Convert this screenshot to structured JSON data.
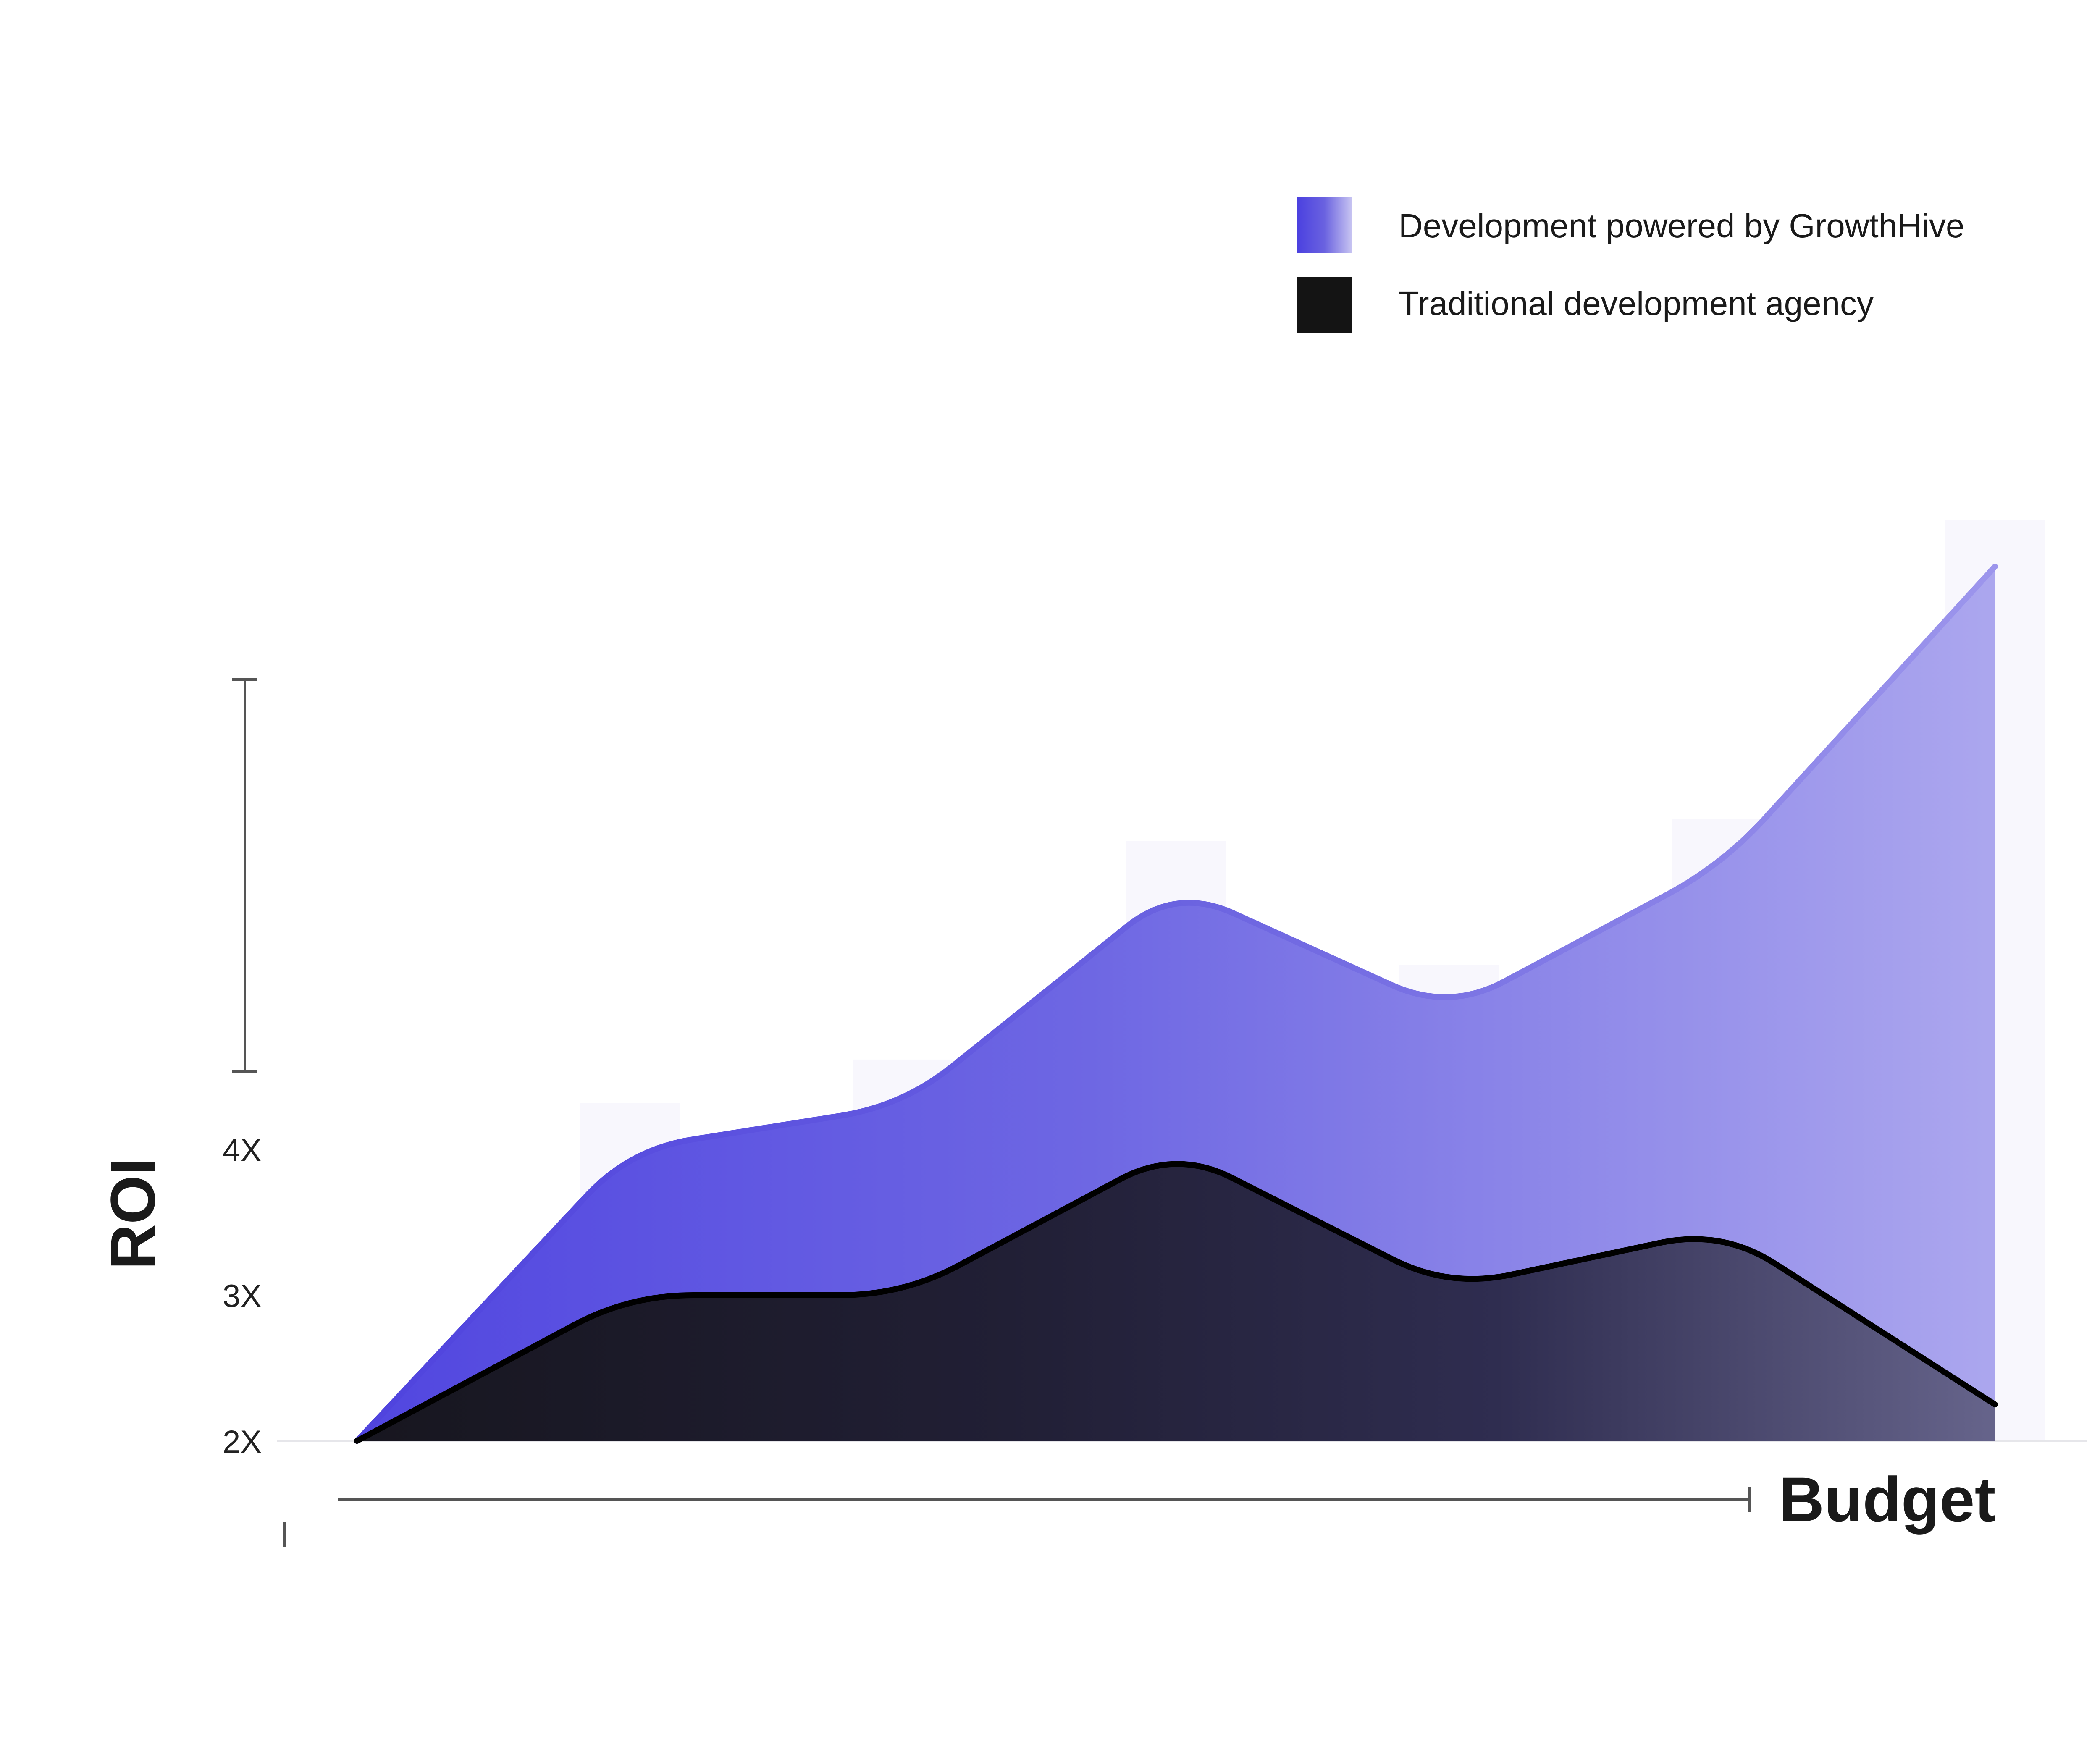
{
  "chart_data": {
    "type": "area",
    "title": "",
    "xlabel": "Budget",
    "ylabel": "ROI",
    "x": [
      0,
      1,
      2,
      3,
      4,
      5,
      6
    ],
    "y_ticks": [
      "2X",
      "3X",
      "4X"
    ],
    "y_tick_values": [
      2,
      3,
      4
    ],
    "ylim": [
      2,
      8.1
    ],
    "grid": false,
    "legend_position": "top-right",
    "series": [
      {
        "name": "Development powered by GrowthHive",
        "values": [
          2.0,
          4.0,
          4.3,
          5.8,
          4.95,
          5.95,
          8.0
        ],
        "color_start": "#5146E0",
        "color_end": "#ABA6EE"
      },
      {
        "name": "Traditional development agency",
        "values": [
          2.0,
          3.0,
          3.0,
          4.0,
          3.05,
          3.45,
          2.25
        ],
        "color_start": "#141319",
        "color_end": "#65638A"
      }
    ]
  },
  "legend": {
    "items": [
      {
        "label": "Development powered by GrowthHive",
        "swatch": "gradient-purple"
      },
      {
        "label": "Traditional development agency",
        "swatch": "solid-black"
      }
    ]
  },
  "colors": {
    "axis": "#555555",
    "background_column": "#F8F7FD",
    "baseline": "#E6E6EA"
  }
}
